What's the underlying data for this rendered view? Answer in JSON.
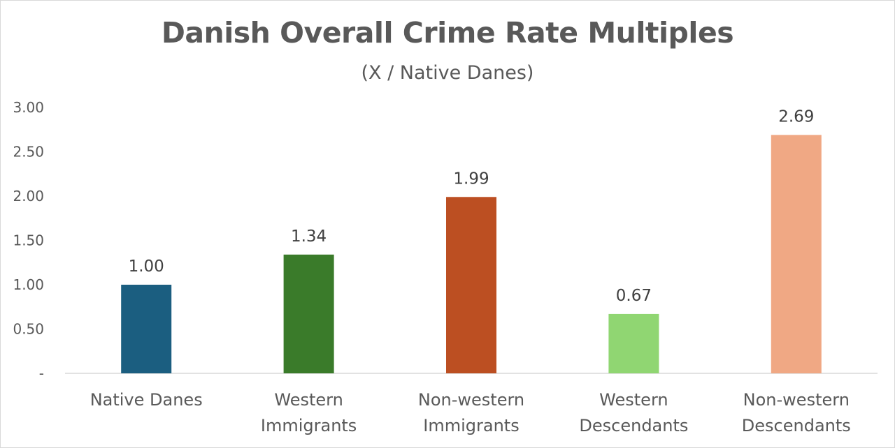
{
  "chart_data": {
    "type": "bar",
    "title": "Danish Overall Crime Rate Multiples",
    "subtitle": "(X / Native Danes)",
    "categories": [
      [
        "Native Danes"
      ],
      [
        "Western",
        "Immigrants"
      ],
      [
        "Non-western",
        "Immigrants"
      ],
      [
        "Western",
        "Descendants"
      ],
      [
        "Non-western",
        "Descendants"
      ]
    ],
    "values": [
      1.0,
      1.34,
      1.99,
      0.67,
      2.69
    ],
    "data_labels": [
      "1.00",
      "1.34",
      "1.99",
      "0.67",
      "2.69"
    ],
    "colors": [
      "#1b5e80",
      "#3a7b2a",
      "#bc4f22",
      "#90d672",
      "#f0a884"
    ],
    "ylim": [
      0,
      3
    ],
    "yticks": [
      0,
      0.5,
      1,
      1.5,
      2,
      2.5,
      3
    ],
    "ytick_labels": [
      "-",
      "0.50",
      "1.00",
      "1.50",
      "2.00",
      "2.50",
      "3.00"
    ],
    "grid": false,
    "legend": "none"
  }
}
